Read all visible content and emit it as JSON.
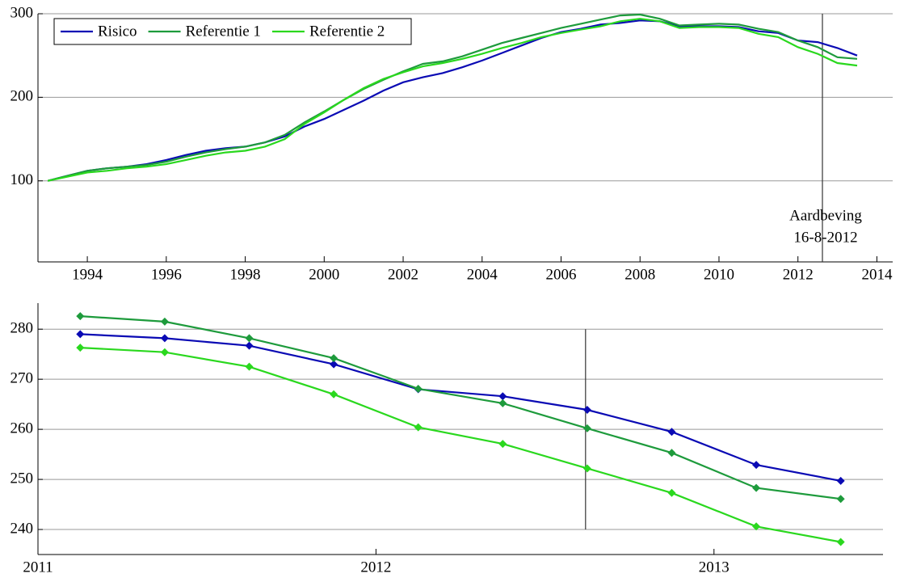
{
  "chart_data": [
    {
      "type": "line",
      "x": [
        1993,
        1993.5,
        1994,
        1994.5,
        1995,
        1995.5,
        1996,
        1996.5,
        1997,
        1997.5,
        1998,
        1998.5,
        1999,
        1999.5,
        2000,
        2000.5,
        2001,
        2001.5,
        2002,
        2002.5,
        2003,
        2003.5,
        2004,
        2004.5,
        2005,
        2005.5,
        2006,
        2006.5,
        2007,
        2007.5,
        2008,
        2008.5,
        2009,
        2009.5,
        2010,
        2010.5,
        2011,
        2011.5,
        2012,
        2012.5,
        2013,
        2013.5
      ],
      "series": [
        {
          "name": "Risico",
          "color": "#0a0ab4",
          "values": [
            100,
            106,
            112,
            115,
            117,
            120,
            125,
            131,
            136,
            139,
            141,
            146,
            153,
            165,
            174,
            185,
            196,
            208,
            218,
            224,
            229,
            236,
            244,
            253,
            262,
            271,
            278,
            282,
            287,
            289,
            292,
            291,
            285,
            285,
            285,
            284,
            279,
            277,
            268,
            266,
            259,
            250
          ]
        },
        {
          "name": "Referentie 1",
          "color": "#1e9b3c",
          "values": [
            100,
            106,
            112,
            115,
            117,
            119,
            123,
            129,
            134,
            138,
            141,
            146,
            155,
            170,
            183,
            197,
            210,
            221,
            231,
            240,
            243,
            249,
            257,
            265,
            271,
            277,
            283,
            288,
            293,
            298,
            299,
            294,
            286,
            287,
            288,
            287,
            282,
            278,
            268,
            260,
            248,
            246
          ]
        },
        {
          "name": "Referentie 2",
          "color": "#2ad81e",
          "values": [
            100,
            105,
            110,
            112,
            115,
            117,
            120,
            125,
            130,
            134,
            136,
            141,
            150,
            168,
            182,
            197,
            211,
            222,
            230,
            237,
            241,
            246,
            252,
            259,
            265,
            272,
            277,
            281,
            285,
            291,
            294,
            291,
            283,
            284,
            284,
            283,
            276,
            272,
            260,
            252,
            241,
            238
          ]
        }
      ],
      "xlim": [
        1992.75,
        2014.4
      ],
      "xticks": [
        1994,
        1996,
        1998,
        2000,
        2002,
        2004,
        2006,
        2008,
        2010,
        2012,
        2014
      ],
      "ylim": [
        3,
        300
      ],
      "yticks": [
        100,
        200,
        300
      ],
      "grid": true,
      "legend": "upper left",
      "event_x": 2012.62,
      "annotation_lines": [
        "Aardbeving",
        "16-8-2012"
      ]
    },
    {
      "type": "line",
      "markers": true,
      "x": [
        2011.125,
        2011.375,
        2011.625,
        2011.875,
        2012.125,
        2012.375,
        2012.625,
        2012.875,
        2013.125,
        2013.375
      ],
      "series": [
        {
          "color": "#0a0ab4",
          "values": [
            279,
            278.2,
            276.7,
            273,
            268,
            266.6,
            263.9,
            259.5,
            252.9,
            249.7
          ]
        },
        {
          "color": "#1e9b3c",
          "values": [
            282.6,
            281.5,
            278.2,
            274.2,
            268.1,
            265.2,
            260.2,
            255.3,
            248.3,
            246.1
          ]
        },
        {
          "color": "#2ad81e",
          "values": [
            276.3,
            275.4,
            272.5,
            267,
            260.4,
            257.1,
            252.2,
            247.3,
            240.6,
            237.5
          ]
        }
      ],
      "xlim": [
        2011,
        2013.5
      ],
      "xticks": [
        2011,
        2012,
        2013
      ],
      "ylim": [
        235,
        285.2
      ],
      "yticks": [
        240,
        250,
        260,
        270,
        280
      ],
      "grid": true,
      "event_x": 2012.62,
      "event_ylim": [
        240,
        280
      ]
    }
  ]
}
